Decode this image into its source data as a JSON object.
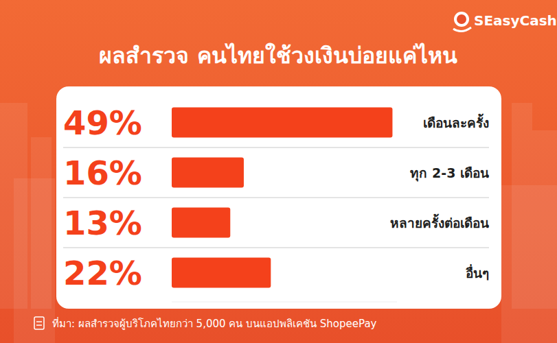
{
  "header": {
    "logo": "SEasyCash"
  },
  "chart_data": {
    "type": "bar",
    "orientation": "horizontal",
    "title": "ผลสำรวจ คนไทยใช้วงเงินบ่อยแค่ไหน",
    "categories": [
      "เดือนละครั้ง",
      "ทุก 2-3 เดือน",
      "หลายครั้งต่อเดือน",
      "อื่นๆ"
    ],
    "values": [
      49,
      16,
      13,
      22
    ],
    "value_labels": [
      "49%",
      "16%",
      "13%",
      "22%"
    ],
    "data_labels": true,
    "color": "#f4411b",
    "xlim": [
      0,
      50
    ],
    "tick_labels": false,
    "grid": false
  },
  "footer": {
    "source": "ที่มา: ผลสำรวจผู้บริโภคไทยกว่า 5,000 คน บนแอปพลิเคชัน ShopeePay"
  }
}
